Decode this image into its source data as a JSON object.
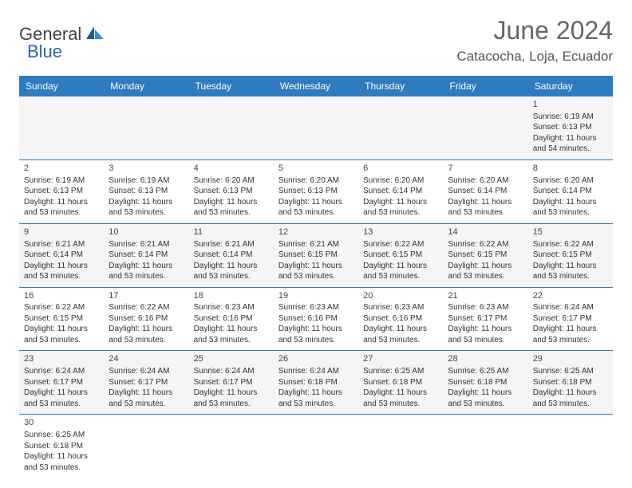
{
  "logo": {
    "part1": "General",
    "part2": "Blue"
  },
  "title": "June 2024",
  "location": "Catacocha, Loja, Ecuador",
  "colors": {
    "header_bg": "#2f7bbf",
    "header_fg": "#ffffff",
    "row_alt": "#f5f5f5"
  },
  "columns": [
    "Sunday",
    "Monday",
    "Tuesday",
    "Wednesday",
    "Thursday",
    "Friday",
    "Saturday"
  ],
  "weeks": [
    [
      null,
      null,
      null,
      null,
      null,
      null,
      {
        "d": "1",
        "sr": "Sunrise: 6:19 AM",
        "ss": "Sunset: 6:13 PM",
        "dl": "Daylight: 11 hours and 54 minutes."
      }
    ],
    [
      {
        "d": "2",
        "sr": "Sunrise: 6:19 AM",
        "ss": "Sunset: 6:13 PM",
        "dl": "Daylight: 11 hours and 53 minutes."
      },
      {
        "d": "3",
        "sr": "Sunrise: 6:19 AM",
        "ss": "Sunset: 6:13 PM",
        "dl": "Daylight: 11 hours and 53 minutes."
      },
      {
        "d": "4",
        "sr": "Sunrise: 6:20 AM",
        "ss": "Sunset: 6:13 PM",
        "dl": "Daylight: 11 hours and 53 minutes."
      },
      {
        "d": "5",
        "sr": "Sunrise: 6:20 AM",
        "ss": "Sunset: 6:13 PM",
        "dl": "Daylight: 11 hours and 53 minutes."
      },
      {
        "d": "6",
        "sr": "Sunrise: 6:20 AM",
        "ss": "Sunset: 6:14 PM",
        "dl": "Daylight: 11 hours and 53 minutes."
      },
      {
        "d": "7",
        "sr": "Sunrise: 6:20 AM",
        "ss": "Sunset: 6:14 PM",
        "dl": "Daylight: 11 hours and 53 minutes."
      },
      {
        "d": "8",
        "sr": "Sunrise: 6:20 AM",
        "ss": "Sunset: 6:14 PM",
        "dl": "Daylight: 11 hours and 53 minutes."
      }
    ],
    [
      {
        "d": "9",
        "sr": "Sunrise: 6:21 AM",
        "ss": "Sunset: 6:14 PM",
        "dl": "Daylight: 11 hours and 53 minutes."
      },
      {
        "d": "10",
        "sr": "Sunrise: 6:21 AM",
        "ss": "Sunset: 6:14 PM",
        "dl": "Daylight: 11 hours and 53 minutes."
      },
      {
        "d": "11",
        "sr": "Sunrise: 6:21 AM",
        "ss": "Sunset: 6:14 PM",
        "dl": "Daylight: 11 hours and 53 minutes."
      },
      {
        "d": "12",
        "sr": "Sunrise: 6:21 AM",
        "ss": "Sunset: 6:15 PM",
        "dl": "Daylight: 11 hours and 53 minutes."
      },
      {
        "d": "13",
        "sr": "Sunrise: 6:22 AM",
        "ss": "Sunset: 6:15 PM",
        "dl": "Daylight: 11 hours and 53 minutes."
      },
      {
        "d": "14",
        "sr": "Sunrise: 6:22 AM",
        "ss": "Sunset: 6:15 PM",
        "dl": "Daylight: 11 hours and 53 minutes."
      },
      {
        "d": "15",
        "sr": "Sunrise: 6:22 AM",
        "ss": "Sunset: 6:15 PM",
        "dl": "Daylight: 11 hours and 53 minutes."
      }
    ],
    [
      {
        "d": "16",
        "sr": "Sunrise: 6:22 AM",
        "ss": "Sunset: 6:15 PM",
        "dl": "Daylight: 11 hours and 53 minutes."
      },
      {
        "d": "17",
        "sr": "Sunrise: 6:22 AM",
        "ss": "Sunset: 6:16 PM",
        "dl": "Daylight: 11 hours and 53 minutes."
      },
      {
        "d": "18",
        "sr": "Sunrise: 6:23 AM",
        "ss": "Sunset: 6:16 PM",
        "dl": "Daylight: 11 hours and 53 minutes."
      },
      {
        "d": "19",
        "sr": "Sunrise: 6:23 AM",
        "ss": "Sunset: 6:16 PM",
        "dl": "Daylight: 11 hours and 53 minutes."
      },
      {
        "d": "20",
        "sr": "Sunrise: 6:23 AM",
        "ss": "Sunset: 6:16 PM",
        "dl": "Daylight: 11 hours and 53 minutes."
      },
      {
        "d": "21",
        "sr": "Sunrise: 6:23 AM",
        "ss": "Sunset: 6:17 PM",
        "dl": "Daylight: 11 hours and 53 minutes."
      },
      {
        "d": "22",
        "sr": "Sunrise: 6:24 AM",
        "ss": "Sunset: 6:17 PM",
        "dl": "Daylight: 11 hours and 53 minutes."
      }
    ],
    [
      {
        "d": "23",
        "sr": "Sunrise: 6:24 AM",
        "ss": "Sunset: 6:17 PM",
        "dl": "Daylight: 11 hours and 53 minutes."
      },
      {
        "d": "24",
        "sr": "Sunrise: 6:24 AM",
        "ss": "Sunset: 6:17 PM",
        "dl": "Daylight: 11 hours and 53 minutes."
      },
      {
        "d": "25",
        "sr": "Sunrise: 6:24 AM",
        "ss": "Sunset: 6:17 PM",
        "dl": "Daylight: 11 hours and 53 minutes."
      },
      {
        "d": "26",
        "sr": "Sunrise: 6:24 AM",
        "ss": "Sunset: 6:18 PM",
        "dl": "Daylight: 11 hours and 53 minutes."
      },
      {
        "d": "27",
        "sr": "Sunrise: 6:25 AM",
        "ss": "Sunset: 6:18 PM",
        "dl": "Daylight: 11 hours and 53 minutes."
      },
      {
        "d": "28",
        "sr": "Sunrise: 6:25 AM",
        "ss": "Sunset: 6:18 PM",
        "dl": "Daylight: 11 hours and 53 minutes."
      },
      {
        "d": "29",
        "sr": "Sunrise: 6:25 AM",
        "ss": "Sunset: 6:18 PM",
        "dl": "Daylight: 11 hours and 53 minutes."
      }
    ],
    [
      {
        "d": "30",
        "sr": "Sunrise: 6:25 AM",
        "ss": "Sunset: 6:18 PM",
        "dl": "Daylight: 11 hours and 53 minutes."
      },
      null,
      null,
      null,
      null,
      null,
      null
    ]
  ]
}
